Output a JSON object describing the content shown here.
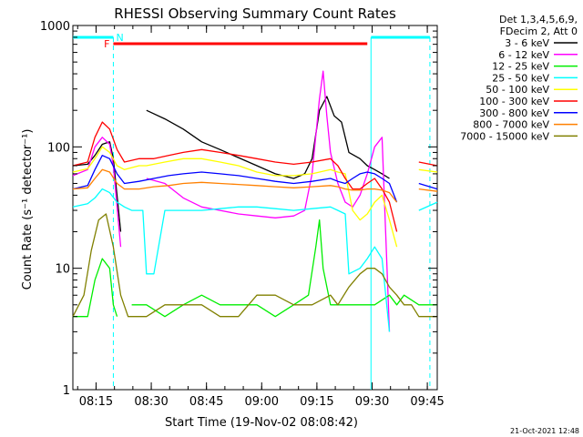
{
  "chart_data": {
    "type": "line",
    "title": "RHESSI Observing Summary Count Rates",
    "xlabel": "Start Time (19-Nov-02 08:08:42)",
    "ylabel": "Count Rate (s⁻¹ detector⁻¹)",
    "x_unit": "minutes from 08:08:42",
    "xlim": [
      0,
      99
    ],
    "ylim": [
      1,
      1000
    ],
    "yscale": "log",
    "grid": false,
    "legend_placement": "top-right, outside plot",
    "legend_header": [
      "Det 1,3,4,5,6,9,",
      "FDecim 2, Att 0"
    ],
    "x_ticks": [
      {
        "t": 6.3,
        "label": "08:15"
      },
      {
        "t": 21.3,
        "label": "08:30"
      },
      {
        "t": 36.3,
        "label": "08:45"
      },
      {
        "t": 51.3,
        "label": "09:00"
      },
      {
        "t": 66.3,
        "label": "09:15"
      },
      {
        "t": 81.3,
        "label": "09:30"
      },
      {
        "t": 96.3,
        "label": "09:45"
      }
    ],
    "y_ticks": [
      {
        "v": 1,
        "label": "1"
      },
      {
        "v": 10,
        "label": "10"
      },
      {
        "v": 100,
        "label": "100"
      },
      {
        "v": 1000,
        "label": "1000"
      }
    ],
    "series": [
      {
        "name": "3 - 6 keV",
        "color": "#000000",
        "x": [
          0,
          4,
          6,
          8,
          10,
          11,
          13,
          17,
          20,
          25,
          30,
          35,
          40,
          50,
          55,
          60,
          63,
          65,
          67,
          69,
          71,
          73,
          75,
          78,
          80,
          82,
          84,
          86,
          88,
          90,
          93,
          96,
          99
        ],
        "y": [
          70,
          72,
          85,
          105,
          110,
          80,
          20,
          null,
          200,
          170,
          140,
          110,
          95,
          70,
          60,
          55,
          60,
          80,
          200,
          260,
          180,
          160,
          90,
          80,
          70,
          65,
          60,
          55,
          null,
          null,
          null,
          null,
          null
        ]
      },
      {
        "name": "6 - 12 keV",
        "color": "#ff00ff",
        "x": [
          0,
          4,
          6,
          8,
          10,
          11,
          13,
          15,
          20,
          25,
          30,
          35,
          40,
          45,
          50,
          55,
          60,
          63,
          65,
          67,
          68,
          69,
          70,
          72,
          74,
          76,
          78,
          80,
          82,
          84,
          86,
          90,
          95,
          99
        ],
        "y": [
          58,
          65,
          100,
          120,
          105,
          70,
          15,
          null,
          55,
          50,
          38,
          32,
          30,
          28,
          27,
          26,
          27,
          30,
          60,
          250,
          420,
          180,
          90,
          50,
          35,
          32,
          40,
          60,
          100,
          120,
          3,
          null,
          null,
          null
        ]
      },
      {
        "name": "12 - 25 keV",
        "color": "#00ee00",
        "x": [
          0,
          4,
          6,
          8,
          10,
          11,
          12,
          14,
          16,
          20,
          25,
          30,
          35,
          40,
          45,
          50,
          55,
          60,
          64,
          66,
          67,
          68,
          70,
          74,
          78,
          82,
          86,
          88,
          90,
          94,
          99
        ],
        "y": [
          4,
          4,
          8,
          12,
          10,
          5,
          4,
          null,
          5,
          5,
          4,
          5,
          6,
          5,
          5,
          5,
          4,
          5,
          6,
          15,
          25,
          10,
          5,
          5,
          5,
          5,
          6,
          5,
          6,
          5,
          5
        ]
      },
      {
        "name": "25 - 50 keV",
        "color": "#00ffff",
        "x": [
          0,
          4,
          6,
          8,
          10,
          12,
          14,
          16,
          19,
          20,
          22,
          25,
          30,
          35,
          40,
          45,
          50,
          55,
          60,
          65,
          70,
          72,
          74,
          75,
          78,
          80,
          82,
          84,
          86,
          90,
          94,
          99
        ],
        "y": [
          32,
          34,
          38,
          45,
          42,
          35,
          32,
          30,
          30,
          9,
          9,
          30,
          30,
          30,
          31,
          32,
          32,
          31,
          30,
          31,
          32,
          30,
          28,
          9,
          10,
          12,
          15,
          12,
          3,
          null,
          30,
          35
        ]
      },
      {
        "name": "50 - 100 keV",
        "color": "#ffff00",
        "x": [
          0,
          4,
          6,
          8,
          10,
          12,
          14,
          18,
          20,
          22,
          25,
          30,
          35,
          40,
          45,
          50,
          55,
          60,
          65,
          70,
          72,
          74,
          76,
          78,
          80,
          82,
          84,
          86,
          88,
          90,
          94,
          99
        ],
        "y": [
          62,
          66,
          80,
          100,
          90,
          70,
          65,
          70,
          70,
          72,
          75,
          80,
          80,
          75,
          70,
          62,
          58,
          58,
          60,
          65,
          62,
          60,
          30,
          25,
          28,
          35,
          40,
          25,
          15,
          null,
          65,
          62
        ]
      },
      {
        "name": "100 - 300 keV",
        "color": "#ff0000",
        "x": [
          0,
          4,
          6,
          8,
          10,
          12,
          14,
          18,
          22,
          26,
          30,
          35,
          40,
          45,
          50,
          55,
          60,
          65,
          70,
          72,
          74,
          76,
          78,
          80,
          82,
          84,
          86,
          88,
          90,
          92,
          94,
          99
        ],
        "y": [
          70,
          75,
          120,
          160,
          140,
          95,
          75,
          80,
          80,
          85,
          90,
          95,
          90,
          85,
          80,
          75,
          72,
          75,
          80,
          70,
          55,
          45,
          45,
          50,
          55,
          45,
          35,
          20,
          null,
          null,
          75,
          70
        ]
      },
      {
        "name": "300 - 800 keV",
        "color": "#0000ff",
        "x": [
          0,
          4,
          6,
          8,
          10,
          12,
          14,
          18,
          22,
          26,
          30,
          35,
          40,
          45,
          50,
          55,
          60,
          65,
          70,
          72,
          74,
          76,
          78,
          80,
          82,
          84,
          86,
          88,
          90,
          94,
          99
        ],
        "y": [
          45,
          48,
          65,
          85,
          80,
          60,
          50,
          52,
          55,
          58,
          60,
          62,
          60,
          58,
          55,
          52,
          50,
          52,
          55,
          52,
          50,
          55,
          60,
          62,
          60,
          55,
          50,
          35,
          null,
          50,
          45
        ]
      },
      {
        "name": "800 - 7000 keV",
        "color": "#ff8000",
        "x": [
          0,
          4,
          6,
          8,
          10,
          12,
          14,
          18,
          22,
          26,
          30,
          35,
          40,
          45,
          50,
          55,
          60,
          65,
          70,
          72,
          74,
          76,
          78,
          80,
          82,
          84,
          86,
          88,
          90,
          94,
          99
        ],
        "y": [
          45,
          46,
          55,
          65,
          62,
          50,
          45,
          45,
          47,
          48,
          50,
          51,
          50,
          49,
          48,
          47,
          46,
          47,
          48,
          47,
          45,
          44,
          44,
          45,
          45,
          44,
          42,
          35,
          null,
          45,
          43
        ]
      },
      {
        "name": "7000 - 15000 keV",
        "color": "#808000",
        "x": [
          0,
          3,
          5,
          7,
          9,
          11,
          13,
          15,
          17,
          20,
          25,
          30,
          35,
          40,
          45,
          50,
          55,
          60,
          65,
          70,
          72,
          75,
          78,
          80,
          82,
          84,
          86,
          88,
          90,
          92,
          94,
          96,
          99
        ],
        "y": [
          4,
          6,
          14,
          25,
          28,
          15,
          6,
          4,
          4,
          4,
          5,
          5,
          5,
          4,
          4,
          6,
          6,
          5,
          5,
          6,
          5,
          7,
          9,
          10,
          10,
          9,
          7,
          6,
          5,
          5,
          4,
          4,
          4
        ]
      }
    ],
    "annotations": {
      "labels": [
        "F",
        "N"
      ],
      "flag_bar_color": "#ff0000",
      "night_bar_color": "#00ffff",
      "flare_flag": [
        11,
        80
      ],
      "night_segments": [
        [
          0,
          11
        ],
        [
          81,
          97
        ]
      ],
      "night_boundaries": [
        11,
        81,
        97
      ]
    },
    "timestamp": "21-Oct-2021 12:48"
  }
}
